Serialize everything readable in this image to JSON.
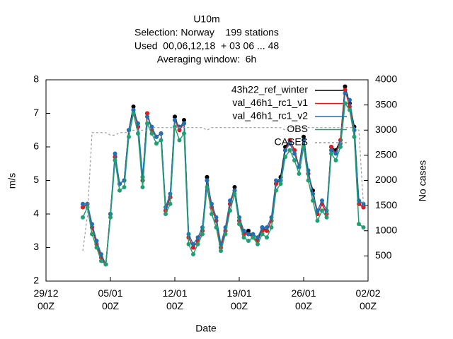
{
  "chart_data": {
    "type": "line",
    "title": "U10m",
    "subtitle": [
      "Selection: Norway    199 stations",
      "Used  00,06,12,18  + 03 06 ... 48",
      "Averaging window:  6h"
    ],
    "xlabel": "Date",
    "ylabel": "m/s",
    "y2label": "No cases",
    "xlim": [
      "29/12 00Z",
      "02/02 00Z"
    ],
    "xticks": [
      {
        "value": "29/12 00Z",
        "label": "29/12\n00Z"
      },
      {
        "value": "05/01 00Z",
        "label": "05/01\n00Z"
      },
      {
        "value": "12/01 00Z",
        "label": "12/01\n00Z"
      },
      {
        "value": "19/01 00Z",
        "label": "19/01\n00Z"
      },
      {
        "value": "26/01 00Z",
        "label": "26/01\n00Z"
      },
      {
        "value": "02/02 00Z",
        "label": "02/02\n00Z"
      }
    ],
    "ylim": [
      2,
      8
    ],
    "yticks": [
      2,
      3,
      4,
      5,
      6,
      7,
      8
    ],
    "y2lim": [
      0,
      4000
    ],
    "y2ticks": [
      500,
      1000,
      1500,
      2000,
      2500,
      3000,
      3500,
      4000
    ],
    "legend": "top right",
    "x": [
      "02/01 00Z",
      "02/01 12Z",
      "03/01 00Z",
      "03/01 12Z",
      "04/01 00Z",
      "04/01 12Z",
      "05/01 00Z",
      "05/01 12Z",
      "06/01 00Z",
      "06/01 12Z",
      "07/01 00Z",
      "07/01 12Z",
      "08/01 00Z",
      "08/01 12Z",
      "09/01 00Z",
      "09/01 12Z",
      "10/01 00Z",
      "10/01 12Z",
      "11/01 00Z",
      "11/01 12Z",
      "12/01 00Z",
      "12/01 12Z",
      "13/01 00Z",
      "13/01 12Z",
      "14/01 00Z",
      "14/01 12Z",
      "15/01 00Z",
      "15/01 12Z",
      "16/01 00Z",
      "16/01 12Z",
      "17/01 00Z",
      "17/01 12Z",
      "18/01 00Z",
      "18/01 12Z",
      "19/01 00Z",
      "19/01 12Z",
      "20/01 00Z",
      "20/01 12Z",
      "21/01 00Z",
      "21/01 12Z",
      "22/01 00Z",
      "22/01 12Z",
      "23/01 00Z",
      "23/01 12Z",
      "24/01 00Z",
      "24/01 12Z",
      "25/01 00Z",
      "25/01 12Z",
      "26/01 00Z",
      "26/01 12Z",
      "27/01 00Z",
      "27/01 12Z",
      "28/01 00Z",
      "28/01 12Z",
      "29/01 00Z",
      "29/01 12Z",
      "30/01 00Z",
      "30/01 12Z",
      "31/01 00Z",
      "31/01 12Z",
      "01/02 00Z",
      "01/02 12Z"
    ],
    "series": [
      {
        "name": "43h22_ref_winter",
        "color": "#000000",
        "marker": true,
        "values": [
          4.2,
          4.3,
          3.6,
          3.1,
          2.7,
          2.5,
          4.0,
          5.7,
          4.9,
          5.0,
          6.5,
          7.2,
          6.6,
          5.0,
          7.0,
          6.5,
          6.3,
          6.4,
          4.1,
          4.5,
          6.9,
          6.5,
          6.8,
          3.3,
          3.0,
          3.2,
          3.5,
          5.1,
          4.2,
          3.8,
          3.0,
          3.5,
          4.3,
          4.8,
          3.8,
          3.4,
          3.5,
          3.3,
          3.2,
          3.6,
          3.5,
          3.8,
          4.9,
          5.1,
          6.0,
          6.2,
          5.9,
          5.4,
          6.3,
          5.2,
          4.7,
          4.0,
          4.3,
          4.0,
          6.0,
          5.9,
          6.2,
          7.8,
          7.3,
          6.6,
          4.3,
          4.2
        ]
      },
      {
        "name": "val_46h1_rc1_v1",
        "color": "#e41a1c",
        "marker": true,
        "values": [
          4.2,
          4.3,
          3.6,
          3.1,
          2.7,
          2.5,
          4.0,
          5.7,
          4.9,
          5.0,
          6.5,
          7.1,
          6.6,
          5.0,
          7.0,
          6.5,
          6.3,
          6.4,
          4.1,
          4.5,
          6.8,
          6.5,
          6.7,
          3.3,
          3.0,
          3.2,
          3.5,
          5.0,
          4.2,
          3.8,
          3.0,
          3.5,
          4.3,
          4.7,
          3.8,
          3.4,
          3.4,
          3.3,
          3.2,
          3.5,
          3.5,
          3.8,
          4.9,
          5.0,
          5.9,
          6.2,
          5.9,
          5.4,
          6.2,
          5.2,
          4.6,
          4.0,
          4.3,
          4.0,
          6.0,
          5.8,
          6.2,
          7.7,
          7.2,
          6.5,
          4.3,
          4.2
        ]
      },
      {
        "name": "val_46h1_rc1_v2",
        "color": "#1f6fb4",
        "marker": true,
        "values": [
          4.3,
          4.3,
          3.7,
          3.2,
          2.8,
          2.5,
          4.0,
          5.8,
          4.9,
          5.0,
          6.5,
          7.1,
          6.7,
          5.1,
          6.9,
          6.6,
          6.3,
          6.4,
          4.2,
          4.6,
          6.8,
          6.6,
          6.7,
          3.4,
          3.1,
          3.3,
          3.6,
          5.0,
          4.3,
          3.9,
          3.1,
          3.6,
          4.4,
          4.7,
          3.9,
          3.5,
          3.4,
          3.4,
          3.3,
          3.6,
          3.6,
          3.9,
          5.0,
          5.0,
          5.9,
          6.1,
          5.8,
          5.4,
          6.2,
          5.3,
          4.6,
          4.1,
          4.4,
          4.1,
          5.9,
          5.8,
          6.1,
          7.6,
          7.4,
          6.5,
          4.4,
          4.3
        ]
      },
      {
        "name": "OBS",
        "color": "#20a070",
        "marker": true,
        "values": [
          3.9,
          4.2,
          3.4,
          3.0,
          2.6,
          2.5,
          3.9,
          5.6,
          4.7,
          4.8,
          6.3,
          7.0,
          6.4,
          4.8,
          6.7,
          6.4,
          6.1,
          6.2,
          4.0,
          4.3,
          6.6,
          6.2,
          6.4,
          3.1,
          2.8,
          3.1,
          3.4,
          4.8,
          4.0,
          3.6,
          2.9,
          3.4,
          4.1,
          4.6,
          3.7,
          3.3,
          3.2,
          3.3,
          3.1,
          3.4,
          3.3,
          3.6,
          4.7,
          4.9,
          5.7,
          5.9,
          5.6,
          5.2,
          6.0,
          5.0,
          4.4,
          3.8,
          4.1,
          3.9,
          5.8,
          5.6,
          6.0,
          7.3,
          7.1,
          6.3,
          3.7,
          3.6
        ]
      },
      {
        "name": "CASES",
        "color": "#999999",
        "marker": false,
        "dashed": true,
        "axis": "y2",
        "values": [
          600,
          1300,
          2950,
          2950,
          2950,
          2950,
          2900,
          2900,
          2950,
          2950,
          2950,
          3000,
          3000,
          3000,
          3000,
          3050,
          3050,
          3050,
          3050,
          3050,
          3050,
          3050,
          3050,
          3050,
          3050,
          3050,
          3050,
          3000,
          3050,
          3050,
          3050,
          3050,
          3050,
          3050,
          3050,
          3050,
          3050,
          3050,
          3050,
          3050,
          3050,
          3050,
          3050,
          3050,
          3000,
          3050,
          3050,
          3050,
          3050,
          3050,
          3050,
          3050,
          3050,
          3050,
          3050,
          3050,
          3050,
          3050,
          3050,
          3050,
          3000,
          1500
        ]
      }
    ]
  }
}
